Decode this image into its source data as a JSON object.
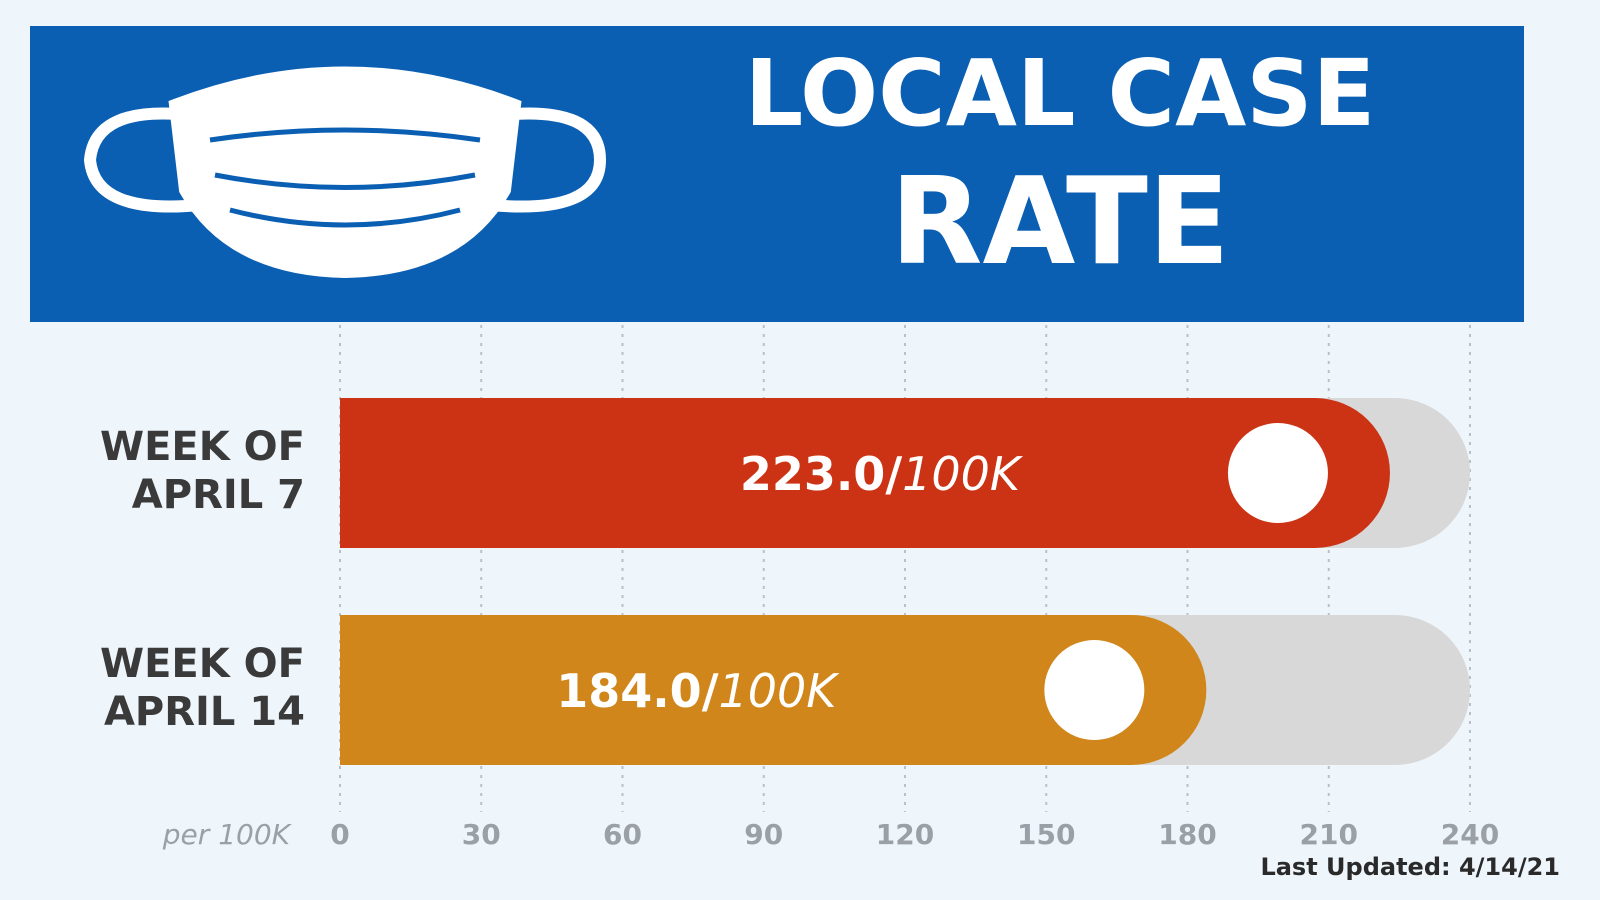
{
  "chart_data": {
    "type": "bar",
    "orientation": "horizontal",
    "title": "LOCAL CASE RATE",
    "categories": [
      "WEEK OF APRIL 7",
      "WEEK OF APRIL 14"
    ],
    "values": [
      223.0,
      184.0
    ],
    "value_labels": [
      "223.0/100K",
      "184.0/100K"
    ],
    "colors": [
      "#cc3214",
      "#d0861a"
    ],
    "xlabel": "per 100K",
    "xlim": [
      0,
      240
    ],
    "xticks": [
      0,
      30,
      60,
      90,
      120,
      150,
      180,
      210,
      240
    ],
    "grid": true,
    "footnote": "Last Updated: 4/14/21"
  }
}
